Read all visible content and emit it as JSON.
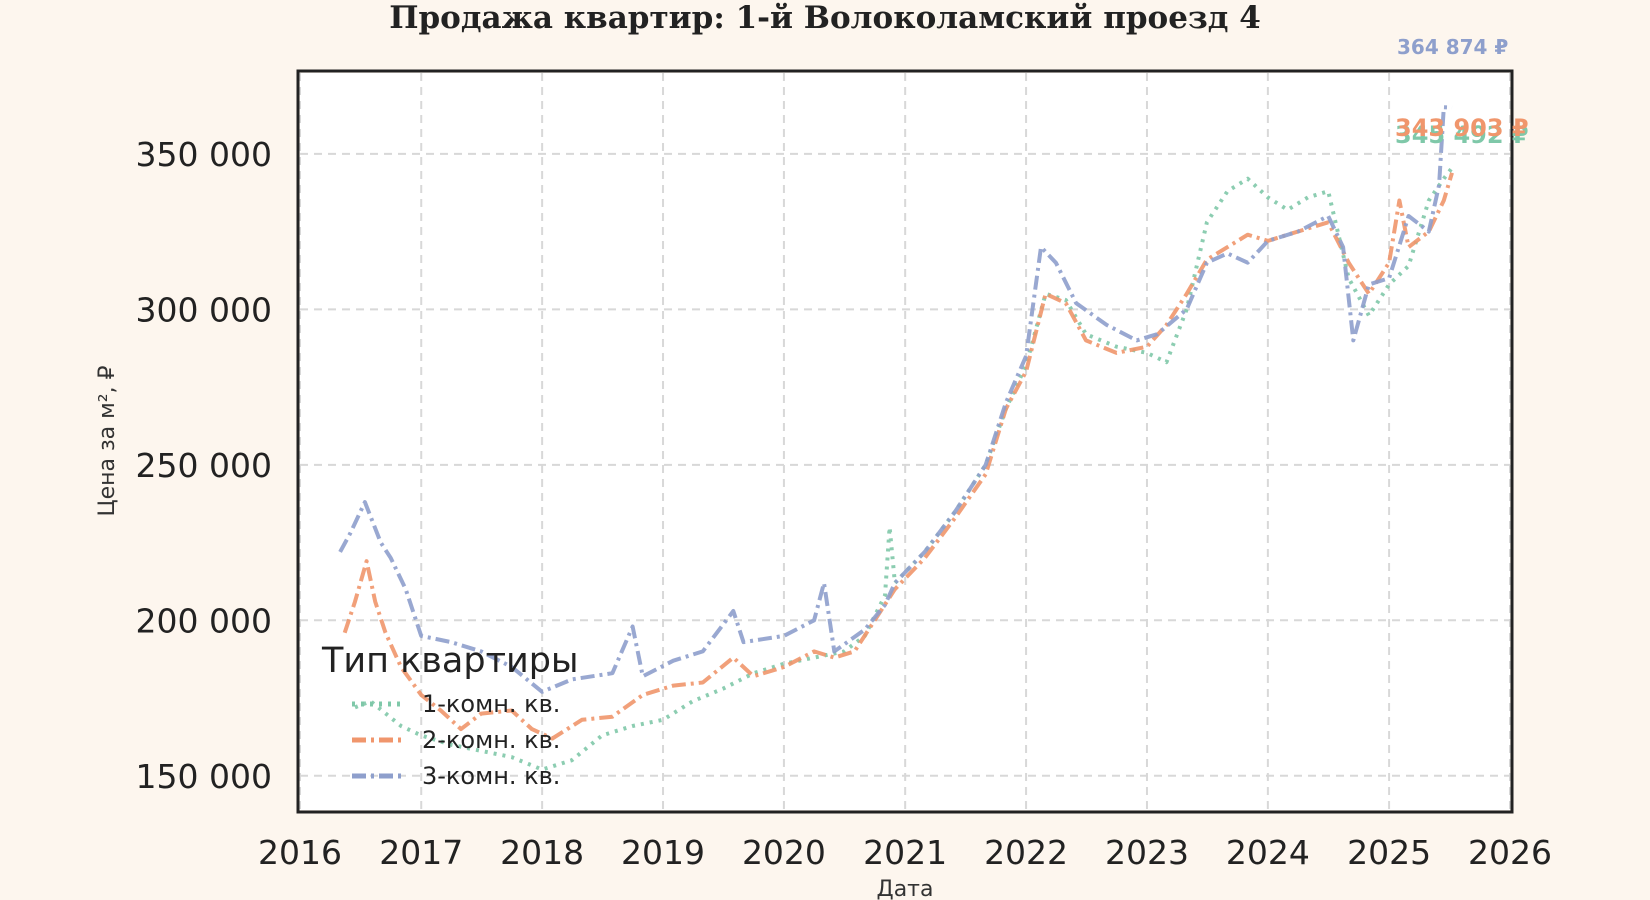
{
  "chart_data": {
    "type": "line",
    "title": "Продажа квартир: 1-й Волоколамский проезд 4",
    "xlabel": "Дата",
    "ylabel": "Цена за м², ₽",
    "xlim": [
      "2016-01-01",
      "2026-01-01"
    ],
    "ylim": [
      139000,
      376000
    ],
    "x_ticks": [
      "2016",
      "2017",
      "2018",
      "2019",
      "2020",
      "2021",
      "2022",
      "2023",
      "2024",
      "2025",
      "2026"
    ],
    "y_ticks": [
      "150 000",
      "200 000",
      "250 000",
      "300 000",
      "350 000"
    ],
    "y_tick_values": [
      150000,
      200000,
      250000,
      300000,
      350000
    ],
    "grid": true,
    "legend": {
      "title": "Тип квартиры",
      "position": "lower-left"
    },
    "series": [
      {
        "name": "1-комн. кв.",
        "color": "#7fc8a9",
        "dash": "dotted",
        "end_label": "345 492 ₽",
        "points": [
          [
            "2016-06-15",
            172000
          ],
          [
            "2016-08-01",
            174000
          ],
          [
            "2016-11-01",
            166000
          ],
          [
            "2017-01-01",
            163000
          ],
          [
            "2017-04-01",
            160000
          ],
          [
            "2017-07-01",
            158000
          ],
          [
            "2017-10-01",
            156000
          ],
          [
            "2018-01-01",
            152000
          ],
          [
            "2018-04-01",
            155000
          ],
          [
            "2018-07-01",
            163000
          ],
          [
            "2018-10-01",
            166000
          ],
          [
            "2019-01-01",
            168000
          ],
          [
            "2019-04-01",
            174000
          ],
          [
            "2019-07-01",
            178000
          ],
          [
            "2019-10-01",
            183000
          ],
          [
            "2020-01-01",
            186000
          ],
          [
            "2020-04-01",
            188000
          ],
          [
            "2020-07-01",
            190000
          ],
          [
            "2020-09-01",
            195000
          ],
          [
            "2020-11-01",
            208000
          ],
          [
            "2020-11-15",
            230000
          ],
          [
            "2020-12-01",
            212000
          ],
          [
            "2021-03-01",
            222000
          ],
          [
            "2021-06-01",
            235000
          ],
          [
            "2021-09-01",
            250000
          ],
          [
            "2021-11-01",
            268000
          ],
          [
            "2022-01-01",
            282000
          ],
          [
            "2022-03-01",
            305000
          ],
          [
            "2022-05-01",
            303000
          ],
          [
            "2022-07-01",
            292000
          ],
          [
            "2022-10-01",
            288000
          ],
          [
            "2023-01-01",
            286000
          ],
          [
            "2023-03-01",
            283000
          ],
          [
            "2023-05-01",
            300000
          ],
          [
            "2023-07-01",
            328000
          ],
          [
            "2023-09-01",
            338000
          ],
          [
            "2023-11-01",
            342000
          ],
          [
            "2024-01-01",
            336000
          ],
          [
            "2024-03-01",
            332000
          ],
          [
            "2024-05-01",
            336000
          ],
          [
            "2024-07-01",
            338000
          ],
          [
            "2024-09-01",
            310000
          ],
          [
            "2024-11-01",
            298000
          ],
          [
            "2025-01-01",
            308000
          ],
          [
            "2025-03-01",
            314000
          ],
          [
            "2025-05-01",
            335000
          ],
          [
            "2025-06-15",
            342000
          ],
          [
            "2025-07-10",
            345492
          ]
        ]
      },
      {
        "name": "2-комн. кв.",
        "color": "#f0966c",
        "dash": "dashdot",
        "end_label": "343 903 ₽",
        "points": [
          [
            "2016-05-15",
            196000
          ],
          [
            "2016-06-15",
            206000
          ],
          [
            "2016-07-20",
            219000
          ],
          [
            "2016-08-15",
            206000
          ],
          [
            "2016-09-15",
            196000
          ],
          [
            "2016-11-01",
            185000
          ],
          [
            "2017-01-01",
            176000
          ],
          [
            "2017-03-01",
            171000
          ],
          [
            "2017-05-01",
            165000
          ],
          [
            "2017-07-01",
            170000
          ],
          [
            "2017-10-01",
            171000
          ],
          [
            "2017-12-01",
            165000
          ],
          [
            "2018-02-01",
            162000
          ],
          [
            "2018-05-01",
            168000
          ],
          [
            "2018-08-01",
            169000
          ],
          [
            "2018-11-01",
            176000
          ],
          [
            "2019-02-01",
            179000
          ],
          [
            "2019-05-01",
            180000
          ],
          [
            "2019-08-01",
            188000
          ],
          [
            "2019-10-01",
            182000
          ],
          [
            "2020-01-01",
            185000
          ],
          [
            "2020-04-01",
            190000
          ],
          [
            "2020-06-01",
            188000
          ],
          [
            "2020-08-01",
            190000
          ],
          [
            "2020-10-01",
            200000
          ],
          [
            "2020-12-01",
            210000
          ],
          [
            "2021-03-01",
            220000
          ],
          [
            "2021-06-01",
            233000
          ],
          [
            "2021-09-01",
            247000
          ],
          [
            "2021-11-01",
            268000
          ],
          [
            "2022-01-01",
            280000
          ],
          [
            "2022-03-01",
            305000
          ],
          [
            "2022-05-01",
            302000
          ],
          [
            "2022-07-01",
            290000
          ],
          [
            "2022-10-01",
            286000
          ],
          [
            "2023-01-01",
            288000
          ],
          [
            "2023-03-01",
            295000
          ],
          [
            "2023-05-01",
            305000
          ],
          [
            "2023-07-01",
            316000
          ],
          [
            "2023-09-01",
            320000
          ],
          [
            "2023-11-01",
            324000
          ],
          [
            "2024-01-01",
            322000
          ],
          [
            "2024-03-01",
            324000
          ],
          [
            "2024-05-01",
            326000
          ],
          [
            "2024-07-01",
            328000
          ],
          [
            "2024-09-01",
            315000
          ],
          [
            "2024-11-01",
            305000
          ],
          [
            "2025-01-01",
            315000
          ],
          [
            "2025-02-01",
            335000
          ],
          [
            "2025-03-01",
            320000
          ],
          [
            "2025-05-01",
            325000
          ],
          [
            "2025-06-15",
            335000
          ],
          [
            "2025-07-10",
            343903
          ]
        ]
      },
      {
        "name": "3-комн. кв.",
        "color": "#8e9fcc",
        "dash": "dashdot",
        "end_label": "364 874 ₽",
        "points": [
          [
            "2016-05-01",
            222000
          ],
          [
            "2016-06-01",
            228000
          ],
          [
            "2016-07-15",
            238000
          ],
          [
            "2016-09-01",
            225000
          ],
          [
            "2016-10-01",
            220000
          ],
          [
            "2016-11-15",
            210000
          ],
          [
            "2017-01-01",
            195000
          ],
          [
            "2017-04-01",
            193000
          ],
          [
            "2017-07-01",
            190000
          ],
          [
            "2017-10-01",
            185000
          ],
          [
            "2018-01-01",
            177000
          ],
          [
            "2018-04-01",
            181000
          ],
          [
            "2018-08-01",
            183000
          ],
          [
            "2018-10-01",
            198000
          ],
          [
            "2018-11-01",
            182000
          ],
          [
            "2019-02-01",
            187000
          ],
          [
            "2019-05-01",
            190000
          ],
          [
            "2019-08-01",
            203000
          ],
          [
            "2019-09-01",
            193000
          ],
          [
            "2020-01-01",
            195000
          ],
          [
            "2020-04-01",
            200000
          ],
          [
            "2020-05-01",
            212000
          ],
          [
            "2020-06-01",
            190000
          ],
          [
            "2020-09-01",
            197000
          ],
          [
            "2020-11-01",
            205000
          ],
          [
            "2020-12-01",
            212000
          ],
          [
            "2021-03-01",
            222000
          ],
          [
            "2021-06-01",
            235000
          ],
          [
            "2021-09-01",
            250000
          ],
          [
            "2021-11-01",
            270000
          ],
          [
            "2022-01-01",
            285000
          ],
          [
            "2022-02-15",
            320000
          ],
          [
            "2022-04-01",
            315000
          ],
          [
            "2022-06-01",
            302000
          ],
          [
            "2022-09-01",
            295000
          ],
          [
            "2022-12-01",
            290000
          ],
          [
            "2023-02-01",
            292000
          ],
          [
            "2023-05-01",
            300000
          ],
          [
            "2023-07-01",
            315000
          ],
          [
            "2023-09-01",
            318000
          ],
          [
            "2023-11-01",
            315000
          ],
          [
            "2024-01-01",
            322000
          ],
          [
            "2024-04-01",
            325000
          ],
          [
            "2024-07-01",
            330000
          ],
          [
            "2024-08-15",
            320000
          ],
          [
            "2024-09-15",
            290000
          ],
          [
            "2024-11-01",
            308000
          ],
          [
            "2025-01-01",
            310000
          ],
          [
            "2025-03-01",
            330000
          ],
          [
            "2025-05-01",
            325000
          ],
          [
            "2025-06-01",
            340000
          ],
          [
            "2025-06-15",
            365000
          ],
          [
            "2025-07-10",
            364874
          ]
        ]
      }
    ]
  }
}
